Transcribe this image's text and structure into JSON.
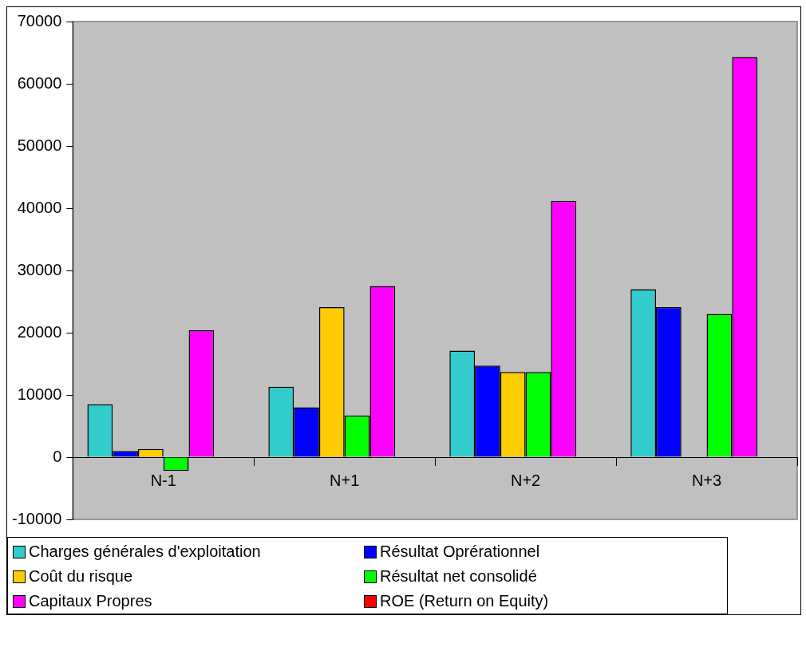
{
  "chart_data": {
    "type": "bar",
    "categories": [
      "N-1",
      "N+1",
      "N+2",
      "N+3"
    ],
    "series": [
      {
        "name": "Charges générales d'exploitation",
        "color": "#33cccc",
        "values": [
          8500,
          11300,
          17100,
          27000
        ]
      },
      {
        "name": "Résultat Oprérationnel",
        "color": "#0000ff",
        "values": [
          1000,
          8000,
          14700,
          24100
        ]
      },
      {
        "name": "Coût du risque",
        "color": "#ffcc00",
        "values": [
          1300,
          24100,
          13700,
          null
        ]
      },
      {
        "name": "Résultat net consolidé",
        "color": "#00ff00",
        "values": [
          -2200,
          6700,
          13700,
          23000
        ]
      },
      {
        "name": "Capitaux Propres",
        "color": "#ff00ff",
        "values": [
          20400,
          27500,
          41200,
          64300
        ]
      },
      {
        "name": "ROE (Return on Equity)",
        "color": "#ff0000",
        "values": [
          null,
          null,
          null,
          null
        ]
      }
    ],
    "ylim": [
      -10000,
      70000
    ],
    "yticks": [
      -10000,
      0,
      10000,
      20000,
      30000,
      40000,
      50000,
      60000,
      70000
    ],
    "grid": false,
    "legend": "bottom"
  }
}
